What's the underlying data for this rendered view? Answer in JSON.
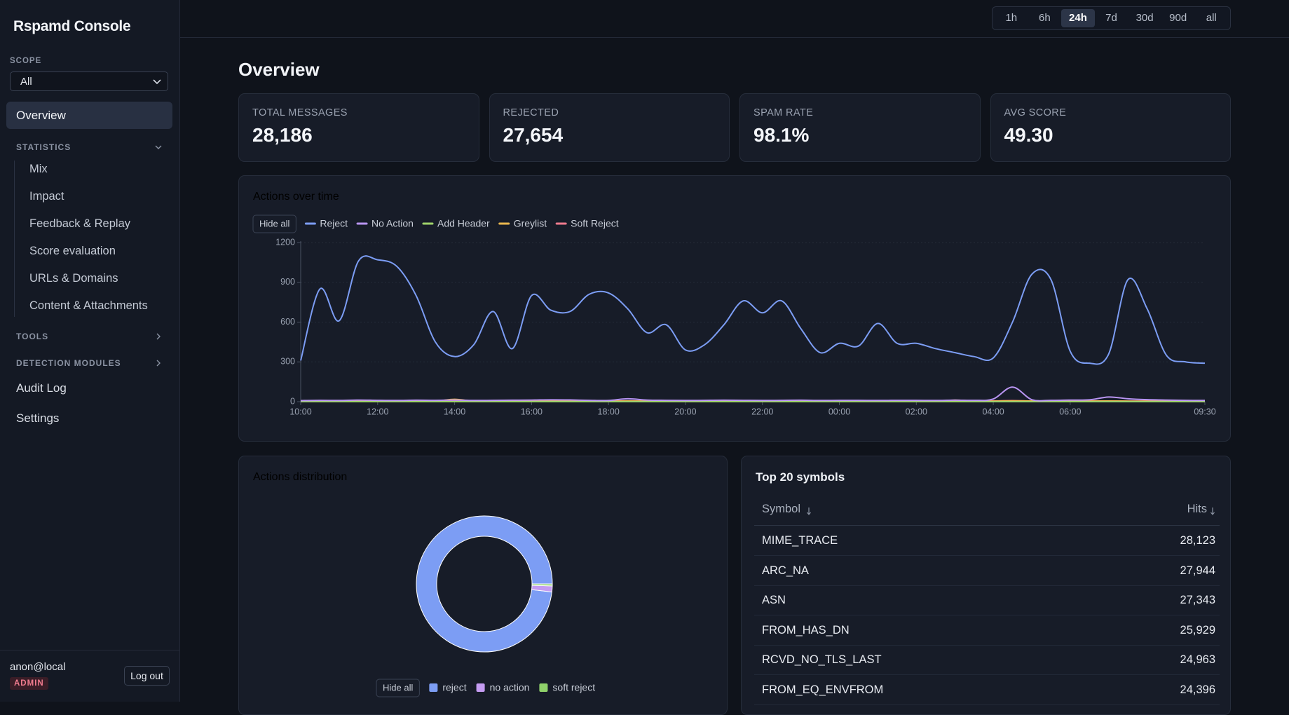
{
  "sidebar": {
    "brand": "Rspamd Console",
    "scope": {
      "label": "SCOPE",
      "value": "All"
    },
    "nav_top": [
      "Overview"
    ],
    "statistics": {
      "label": "STATISTICS",
      "items": [
        "Mix",
        "Impact",
        "Feedback & Replay",
        "Score evaluation",
        "URLs & Domains",
        "Content & Attachments"
      ]
    },
    "collapsed_sections": [
      "TOOLS",
      "DETECTION MODULES"
    ],
    "nav_bottom": [
      "Audit Log",
      "Settings"
    ],
    "user": {
      "name": "anon@local",
      "role": "ADMIN",
      "logout": "Log out"
    }
  },
  "time_ranges": [
    {
      "label": "1h"
    },
    {
      "label": "6h"
    },
    {
      "label": "24h",
      "active": true
    },
    {
      "label": "7d"
    },
    {
      "label": "30d"
    },
    {
      "label": "90d"
    },
    {
      "label": "all"
    }
  ],
  "page_title": "Overview",
  "stats": [
    {
      "label": "TOTAL MESSAGES",
      "value": "28,186"
    },
    {
      "label": "REJECTED",
      "value": "27,654"
    },
    {
      "label": "SPAM RATE",
      "value": "98.1%"
    },
    {
      "label": "AVG SCORE",
      "value": "49.30"
    }
  ],
  "chart_data": [
    {
      "type": "line",
      "title": "Actions over time",
      "legend_toggle": "Hide all",
      "categories": [
        "10:00",
        null,
        null,
        null,
        "12:00",
        null,
        null,
        null,
        "14:00",
        null,
        null,
        null,
        "16:00",
        null,
        null,
        null,
        "18:00",
        null,
        null,
        null,
        "20:00",
        null,
        null,
        null,
        "22:00",
        null,
        null,
        null,
        "00:00",
        null,
        null,
        null,
        "02:00",
        null,
        null,
        null,
        "04:00",
        null,
        null,
        null,
        "06:00",
        null,
        null,
        null,
        null,
        null,
        null,
        "09:30"
      ],
      "series": [
        {
          "name": "Reject",
          "color": "#7c9df4",
          "values": [
            310,
            850,
            610,
            1060,
            1070,
            1020,
            800,
            450,
            340,
            430,
            680,
            400,
            800,
            690,
            680,
            810,
            820,
            700,
            520,
            580,
            390,
            430,
            580,
            760,
            670,
            760,
            550,
            370,
            440,
            420,
            590,
            440,
            440,
            400,
            370,
            340,
            330,
            600,
            960,
            920,
            380,
            290,
            360,
            920,
            700,
            350,
            300,
            290
          ]
        },
        {
          "name": "No Action",
          "color": "#b995f2",
          "values": [
            8,
            10,
            9,
            12,
            10,
            9,
            11,
            10,
            12,
            9,
            10,
            11,
            12,
            14,
            13,
            10,
            9,
            22,
            12,
            10,
            9,
            10,
            11,
            10,
            9,
            10,
            11,
            9,
            10,
            10,
            9,
            10,
            10,
            9,
            11,
            10,
            20,
            110,
            15,
            10,
            12,
            14,
            35,
            22,
            15,
            12,
            10,
            9
          ]
        },
        {
          "name": "Add Header",
          "color": "#9fd26a",
          "values": [
            0,
            0,
            0,
            0,
            0,
            0,
            0,
            0,
            0,
            0,
            0,
            0,
            0,
            0,
            0,
            0,
            0,
            0,
            0,
            0,
            0,
            0,
            0,
            0,
            0,
            0,
            0,
            0,
            0,
            0,
            0,
            0,
            0,
            0,
            0,
            0,
            0,
            0,
            0,
            0,
            0,
            0,
            0,
            0,
            0,
            0,
            0,
            0
          ]
        },
        {
          "name": "Greylist",
          "color": "#e8b64e",
          "values": [
            3,
            4,
            3,
            5,
            4,
            3,
            6,
            4,
            18,
            4,
            3,
            5,
            4,
            6,
            5,
            4,
            3,
            5,
            4,
            3,
            4,
            5,
            3,
            4,
            5,
            3,
            4,
            3,
            4,
            5,
            3,
            4,
            3,
            4,
            12,
            5,
            4,
            6,
            5,
            4,
            3,
            4,
            5,
            4,
            3,
            4,
            3,
            4
          ]
        },
        {
          "name": "Soft Reject",
          "color": "#f07b8e",
          "values": [
            4,
            5,
            6,
            4,
            5,
            4,
            5,
            6,
            4,
            5,
            6,
            4,
            5,
            6,
            5,
            4,
            6,
            5,
            4,
            5,
            6,
            4,
            5,
            4,
            6,
            5,
            4,
            5,
            6,
            4,
            5,
            4,
            6,
            5,
            4,
            5,
            6,
            8,
            5,
            4,
            5,
            6,
            5,
            4,
            5,
            6,
            4,
            5
          ]
        }
      ],
      "ylim": [
        0,
        1200
      ],
      "yticks": [
        0,
        300,
        600,
        900,
        1200
      ],
      "grid": true
    },
    {
      "type": "pie",
      "title": "Actions distribution",
      "legend_toggle": "Hide all",
      "categories": [
        "reject",
        "no action",
        "soft reject"
      ],
      "values": [
        27654,
        400,
        132
      ],
      "colors": [
        "#7c9df4",
        "#c59cf2",
        "#8fd16a"
      ],
      "donut": true
    }
  ],
  "table": {
    "title": "Top 20 symbols",
    "columns": [
      "Symbol",
      "Hits"
    ],
    "rows": [
      [
        "MIME_TRACE",
        "28,123"
      ],
      [
        "ARC_NA",
        "27,944"
      ],
      [
        "ASN",
        "27,343"
      ],
      [
        "FROM_HAS_DN",
        "25,929"
      ],
      [
        "RCVD_NO_TLS_LAST",
        "24,963"
      ],
      [
        "FROM_EQ_ENVFROM",
        "24,396"
      ]
    ]
  }
}
